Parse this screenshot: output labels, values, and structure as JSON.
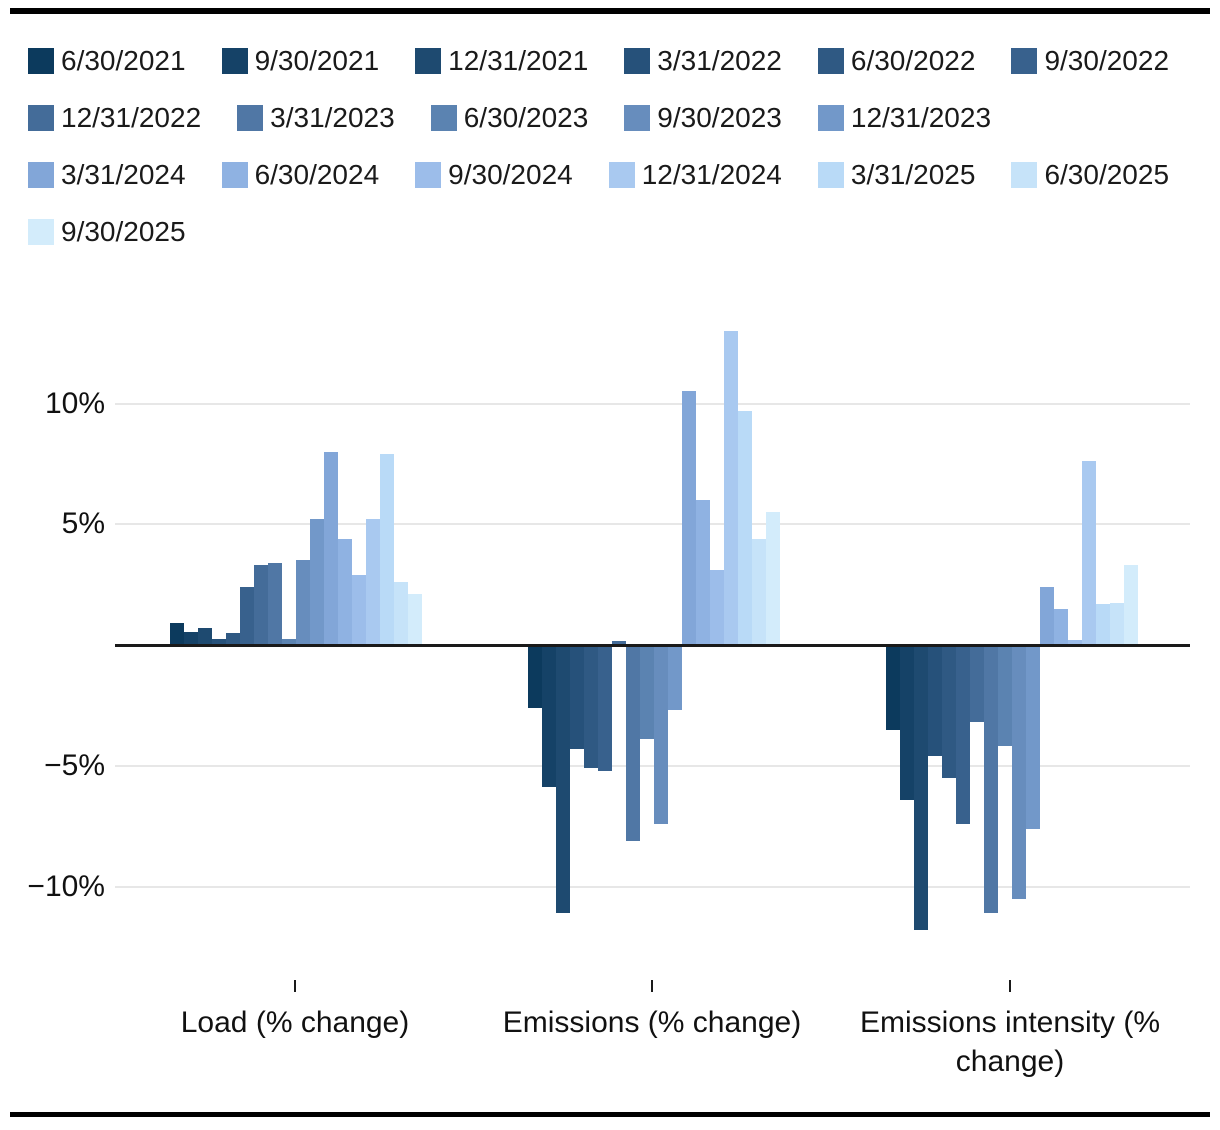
{
  "chart_data": {
    "type": "bar",
    "title": "",
    "categories": [
      "Load (% change)",
      "Emissions (% change)",
      "Emissions intensity (% change)"
    ],
    "series": [
      {
        "name": "6/30/2021",
        "color": "#0c3a5d",
        "values": [
          0.9,
          -2.6,
          -3.5
        ]
      },
      {
        "name": "9/30/2021",
        "color": "#154267",
        "values": [
          0.55,
          -5.9,
          -6.4
        ]
      },
      {
        "name": "12/31/2021",
        "color": "#1e4a70",
        "values": [
          0.7,
          -11.1,
          -11.8
        ]
      },
      {
        "name": "3/31/2022",
        "color": "#26517a",
        "values": [
          0.25,
          -4.3,
          -4.6
        ]
      },
      {
        "name": "6/30/2022",
        "color": "#2f5983",
        "values": [
          0.5,
          -5.1,
          -5.5
        ]
      },
      {
        "name": "9/30/2022",
        "color": "#38618d",
        "values": [
          2.4,
          -5.2,
          -7.4
        ]
      },
      {
        "name": "12/31/2022",
        "color": "#446c99",
        "values": [
          3.3,
          0.15,
          -3.2
        ]
      },
      {
        "name": "3/31/2023",
        "color": "#5077a5",
        "values": [
          3.4,
          -8.1,
          -11.1
        ]
      },
      {
        "name": "6/30/2023",
        "color": "#5b83b1",
        "values": [
          0.25,
          -3.9,
          -4.2
        ]
      },
      {
        "name": "9/30/2023",
        "color": "#678dbd",
        "values": [
          3.5,
          -7.4,
          -10.5
        ]
      },
      {
        "name": "12/31/2023",
        "color": "#7298c9",
        "values": [
          5.2,
          -2.7,
          -7.6
        ]
      },
      {
        "name": "3/31/2024",
        "color": "#82a6d8",
        "values": [
          8.0,
          10.5,
          2.4
        ]
      },
      {
        "name": "6/30/2024",
        "color": "#8fb2e2",
        "values": [
          4.4,
          6.0,
          1.5
        ]
      },
      {
        "name": "9/30/2024",
        "color": "#9cbdea",
        "values": [
          2.9,
          3.1,
          0.2
        ]
      },
      {
        "name": "12/31/2024",
        "color": "#a9c9f0",
        "values": [
          5.2,
          13.0,
          7.6
        ]
      },
      {
        "name": "3/31/2025",
        "color": "#b9daf7",
        "values": [
          7.9,
          9.7,
          1.7
        ]
      },
      {
        "name": "6/30/2025",
        "color": "#c6e3f9",
        "values": [
          2.6,
          4.4,
          1.75
        ]
      },
      {
        "name": "9/30/2025",
        "color": "#d3ecfb",
        "values": [
          2.1,
          5.5,
          3.3
        ]
      }
    ],
    "yticks": [
      {
        "label": "10%",
        "value": 10
      },
      {
        "label": "5%",
        "value": 5
      },
      {
        "label": "−5%",
        "value": -5
      },
      {
        "label": "−10%",
        "value": -10
      }
    ],
    "ylim": [
      -13.2,
      13.5
    ],
    "value_suffix": "%",
    "grid": true,
    "legend_position": "top",
    "xlabel": "",
    "ylabel": ""
  }
}
